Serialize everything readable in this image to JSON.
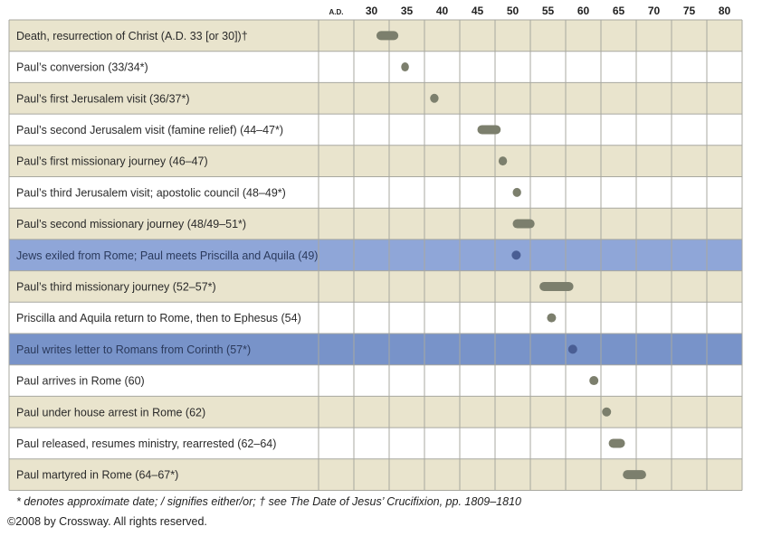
{
  "chart_data": {
    "type": "timeline",
    "axis_start_label": "A.D.",
    "ticks": [
      30,
      35,
      40,
      45,
      50,
      55,
      60,
      65,
      70,
      75,
      80
    ],
    "xlim": [
      25,
      82.5
    ],
    "colors": {
      "row_tan": "#e9e4cd",
      "row_white": "#ffffff",
      "row_highlight": "#8fa6d8",
      "row_highlight_dark": "#7893c9",
      "grid": "#a8a8a0",
      "bar": "#7c7f6d",
      "bar_highlight": "#4a5e94"
    },
    "events": [
      {
        "label": "Death, resurrection of Christ (A.D. 33 [or 30])†",
        "start": 30.7,
        "end": 33.8,
        "fill": "tan"
      },
      {
        "label": "Paul’s conversion (33/34*)",
        "start": 34.2,
        "end": 35.3,
        "fill": "white"
      },
      {
        "label": "Paul’s first Jerusalem visit (36/37*)",
        "start": 38.3,
        "end": 39.5,
        "fill": "tan"
      },
      {
        "label": "Paul’s second Jerusalem visit (famine relief) (44–47*)",
        "start": 45.0,
        "end": 48.3,
        "fill": "white"
      },
      {
        "label": "Paul’s first missionary journey (46–47)",
        "start": 48.0,
        "end": 49.2,
        "fill": "tan"
      },
      {
        "label": "Paul’s third Jerusalem visit; apostolic council (48–49*)",
        "start": 50.0,
        "end": 51.2,
        "fill": "white"
      },
      {
        "label": "Paul’s second missionary journey (48/49–51*)",
        "start": 50.0,
        "end": 53.1,
        "fill": "tan"
      },
      {
        "label": "Jews exiled from Rome; Paul meets Priscilla and Aquila (49)",
        "start": 50.5,
        "end": 50.5,
        "fill": "highlight"
      },
      {
        "label": "Paul’s third missionary journey (52–57*)",
        "start": 53.8,
        "end": 58.6,
        "fill": "tan"
      },
      {
        "label": "Priscilla and Aquila return to Rome, then to Ephesus (54)",
        "start": 55.5,
        "end": 55.5,
        "fill": "white"
      },
      {
        "label": "Paul writes letter to Romans from Corinth (57*)",
        "start": 58.5,
        "end": 58.5,
        "fill": "highlight_dark"
      },
      {
        "label": "Paul arrives in Rome (60)",
        "start": 61.5,
        "end": 61.5,
        "fill": "white"
      },
      {
        "label": "Paul under house arrest in Rome (62)",
        "start": 63.3,
        "end": 63.3,
        "fill": "tan"
      },
      {
        "label": "Paul released, resumes ministry, rearrested (62–64)",
        "start": 63.6,
        "end": 65.9,
        "fill": "white"
      },
      {
        "label": "Paul martyred in Rome (64–67*)",
        "start": 65.6,
        "end": 68.9,
        "fill": "tan"
      }
    ]
  },
  "footnote": "* denotes approximate date; / signifies either/or; † see The Date of Jesus’ Crucifixion, pp. 1809–1810",
  "copyright": "©2008 by Crossway. All rights reserved."
}
